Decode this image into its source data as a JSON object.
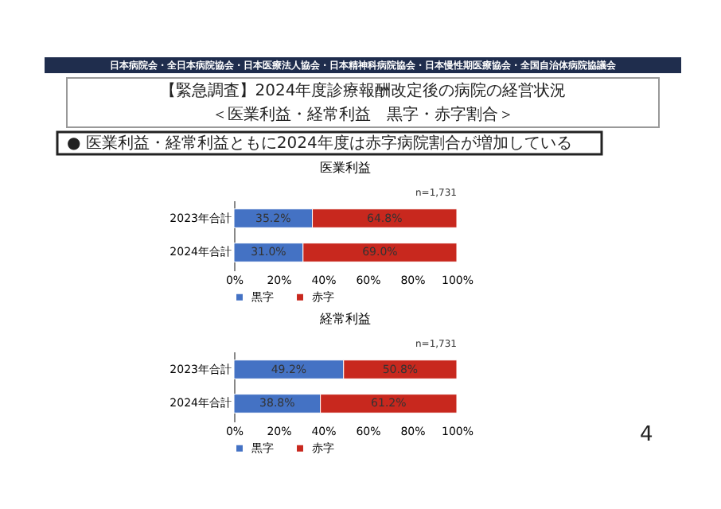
{
  "chart_data": [
    {
      "type": "bar",
      "orientation": "horizontal",
      "stacked": true,
      "title": "医業利益",
      "categories": [
        "2023年合計",
        "2024年合計"
      ],
      "series": [
        {
          "name": "黒字",
          "color": "#4472c4",
          "values": [
            35.2,
            31.0
          ],
          "value_labels": [
            "35.2%",
            "31.0%"
          ]
        },
        {
          "name": "赤字",
          "color": "#c8281e",
          "values": [
            64.8,
            69.0
          ],
          "value_labels": [
            "64.8%",
            "69.0%"
          ]
        }
      ],
      "xlim": [
        0,
        100
      ],
      "xticks": [
        {
          "value": 0,
          "label": "0%"
        },
        {
          "value": 20,
          "label": "20%"
        },
        {
          "value": 40,
          "label": "40%"
        },
        {
          "value": 60,
          "label": "60%"
        },
        {
          "value": 80,
          "label": "80%"
        },
        {
          "value": 100,
          "label": "100%"
        }
      ],
      "legend": "bottom",
      "grid": false,
      "annotations": [
        "日本病院会・全日本病院協会・日本医療法人協会・日本精神科病院協会・日本慢性期医療協会・全国自治体病院協議会",
        "【緊急調査】2024年度診療報酬改定後の病院の経営状況",
        "＜医業利益・経常利益　黒字・赤字割合＞",
        "●  医業利益・経常利益ともに2024年度は赤字病院割合が増加している",
        "n=1,731"
      ]
    },
    {
      "type": "bar",
      "orientation": "horizontal",
      "stacked": true,
      "title": "経常利益",
      "categories": [
        "2023年合計",
        "2024年合計"
      ],
      "series": [
        {
          "name": "黒字",
          "color": "#4472c4",
          "values": [
            49.2,
            38.8
          ],
          "value_labels": [
            "49.2%",
            "38.8%"
          ]
        },
        {
          "name": "赤字",
          "color": "#c8281e",
          "values": [
            50.8,
            61.2
          ],
          "value_labels": [
            "50.8%",
            "61.2%"
          ]
        }
      ],
      "xlim": [
        0,
        100
      ],
      "xticks": [
        {
          "value": 0,
          "label": "0%"
        },
        {
          "value": 20,
          "label": "20%"
        },
        {
          "value": 40,
          "label": "40%"
        },
        {
          "value": 60,
          "label": "60%"
        },
        {
          "value": 80,
          "label": "80%"
        },
        {
          "value": 100,
          "label": "100%"
        }
      ],
      "legend": "bottom",
      "grid": false,
      "annotations": [
        "n=1,731",
        "4"
      ]
    }
  ]
}
